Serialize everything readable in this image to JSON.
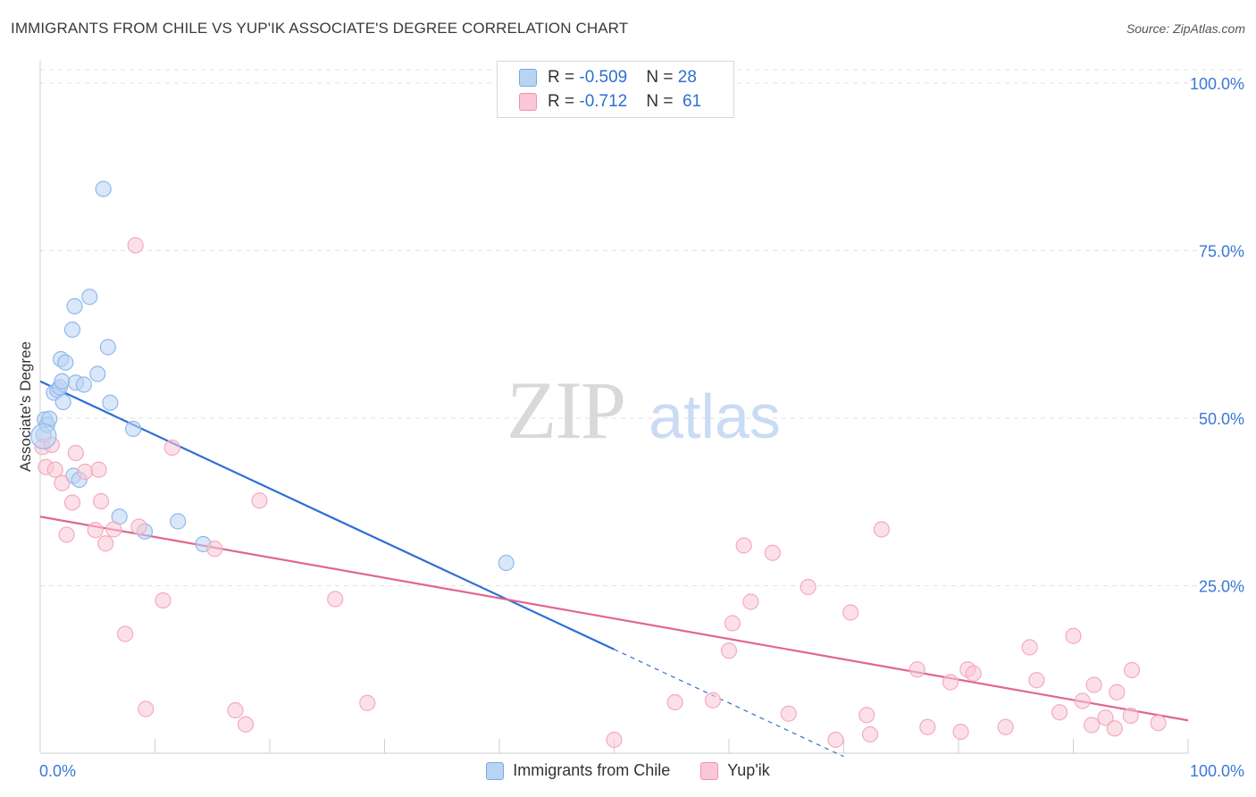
{
  "title": "IMMIGRANTS FROM CHILE VS YUP'IK ASSOCIATE'S DEGREE CORRELATION CHART",
  "source": "Source: ZipAtlas.com",
  "watermark": {
    "zip": "ZIP",
    "atlas": "atlas"
  },
  "stats": [
    {
      "label_r": "R = ",
      "r": "-0.509",
      "label_n": "N = ",
      "n": "28",
      "color": "#b9d3f4"
    },
    {
      "label_r": "R = ",
      "r": "-0.712",
      "label_n": "N = ",
      "n": "61",
      "color": "#f9c7d6"
    }
  ],
  "legend": [
    {
      "label": "Immigrants from Chile",
      "color": "#b9d3f4"
    },
    {
      "label": "Yup'ik",
      "color": "#f9c7d6"
    }
  ],
  "chart_data": {
    "type": "scatter",
    "title": "IMMIGRANTS FROM CHILE VS YUP'IK ASSOCIATE'S DEGREE CORRELATION CHART",
    "xlabel": "",
    "ylabel": "Associate's Degree",
    "xlim": [
      0,
      100
    ],
    "ylim": [
      0,
      102
    ],
    "x_tick_labels": [
      {
        "value": 0,
        "label": "0.0%"
      },
      {
        "value": 100,
        "label": "100.0%"
      }
    ],
    "y_tick_labels": [
      {
        "value": 25,
        "label": "25.0%"
      },
      {
        "value": 50,
        "label": "50.0%"
      },
      {
        "value": 75,
        "label": "75.0%"
      },
      {
        "value": 100,
        "label": "100.0%"
      }
    ],
    "grid": "horizontal dashed",
    "series": [
      {
        "name": "Immigrants from Chile",
        "color": "#8fb8ea",
        "line_color": "#2d6fd6",
        "points": [
          [
            0.3,
            47.5
          ],
          [
            0.4,
            49.8
          ],
          [
            0.6,
            49.0
          ],
          [
            0.8,
            49.9
          ],
          [
            1.2,
            53.8
          ],
          [
            1.5,
            54.2
          ],
          [
            1.7,
            54.6
          ],
          [
            1.8,
            58.8
          ],
          [
            1.9,
            55.5
          ],
          [
            2.0,
            52.4
          ],
          [
            2.2,
            58.3
          ],
          [
            2.8,
            63.2
          ],
          [
            2.9,
            41.4
          ],
          [
            3.0,
            66.7
          ],
          [
            3.1,
            55.3
          ],
          [
            3.4,
            40.8
          ],
          [
            3.8,
            55.0
          ],
          [
            4.3,
            68.1
          ],
          [
            5.0,
            56.6
          ],
          [
            5.5,
            84.2
          ],
          [
            5.9,
            60.6
          ],
          [
            6.1,
            52.3
          ],
          [
            6.9,
            35.3
          ],
          [
            8.1,
            48.4
          ],
          [
            9.1,
            33.1
          ],
          [
            12.0,
            34.6
          ],
          [
            14.2,
            31.2
          ],
          [
            40.6,
            28.4
          ]
        ],
        "trend": {
          "x1": 0,
          "y1": 55.5,
          "x2": 50.0,
          "y2": 15.5,
          "dash_to_x": 70.0,
          "dash_to_y": -0.5
        }
      },
      {
        "name": "Yup'ik",
        "color": "#f5a9bf",
        "line_color": "#e06690",
        "points": [
          [
            0.2,
            45.7
          ],
          [
            0.5,
            42.7
          ],
          [
            1.0,
            46.0
          ],
          [
            1.3,
            42.3
          ],
          [
            1.9,
            40.3
          ],
          [
            2.3,
            32.6
          ],
          [
            2.8,
            37.4
          ],
          [
            3.1,
            44.8
          ],
          [
            3.9,
            42.0
          ],
          [
            4.8,
            33.3
          ],
          [
            5.1,
            42.3
          ],
          [
            5.3,
            37.6
          ],
          [
            5.7,
            31.3
          ],
          [
            6.4,
            33.4
          ],
          [
            7.4,
            17.8
          ],
          [
            8.3,
            75.8
          ],
          [
            8.6,
            33.8
          ],
          [
            9.2,
            6.6
          ],
          [
            10.7,
            22.8
          ],
          [
            11.5,
            45.6
          ],
          [
            15.2,
            30.5
          ],
          [
            17.0,
            6.4
          ],
          [
            17.9,
            4.3
          ],
          [
            19.1,
            37.7
          ],
          [
            25.7,
            23.0
          ],
          [
            28.5,
            7.5
          ],
          [
            50.0,
            2.0
          ],
          [
            55.3,
            7.6
          ],
          [
            58.6,
            7.9
          ],
          [
            60.0,
            15.3
          ],
          [
            60.3,
            19.4
          ],
          [
            61.3,
            31.0
          ],
          [
            61.9,
            22.6
          ],
          [
            63.8,
            29.9
          ],
          [
            65.2,
            5.9
          ],
          [
            66.9,
            24.8
          ],
          [
            69.3,
            2.0
          ],
          [
            70.6,
            21.0
          ],
          [
            72.0,
            5.7
          ],
          [
            72.3,
            2.8
          ],
          [
            73.3,
            33.4
          ],
          [
            76.4,
            12.5
          ],
          [
            77.3,
            3.9
          ],
          [
            79.3,
            10.6
          ],
          [
            80.2,
            3.2
          ],
          [
            80.8,
            12.5
          ],
          [
            81.3,
            11.9
          ],
          [
            84.1,
            3.9
          ],
          [
            86.2,
            15.8
          ],
          [
            86.8,
            10.9
          ],
          [
            88.8,
            6.1
          ],
          [
            90.0,
            17.5
          ],
          [
            90.8,
            7.8
          ],
          [
            91.6,
            4.2
          ],
          [
            91.8,
            10.2
          ],
          [
            92.8,
            5.3
          ],
          [
            93.6,
            3.7
          ],
          [
            93.8,
            9.1
          ],
          [
            95.0,
            5.6
          ],
          [
            95.1,
            12.4
          ],
          [
            97.4,
            4.5
          ]
        ],
        "trend": {
          "x1": 0,
          "y1": 35.3,
          "x2": 100,
          "y2": 4.9
        }
      }
    ]
  }
}
